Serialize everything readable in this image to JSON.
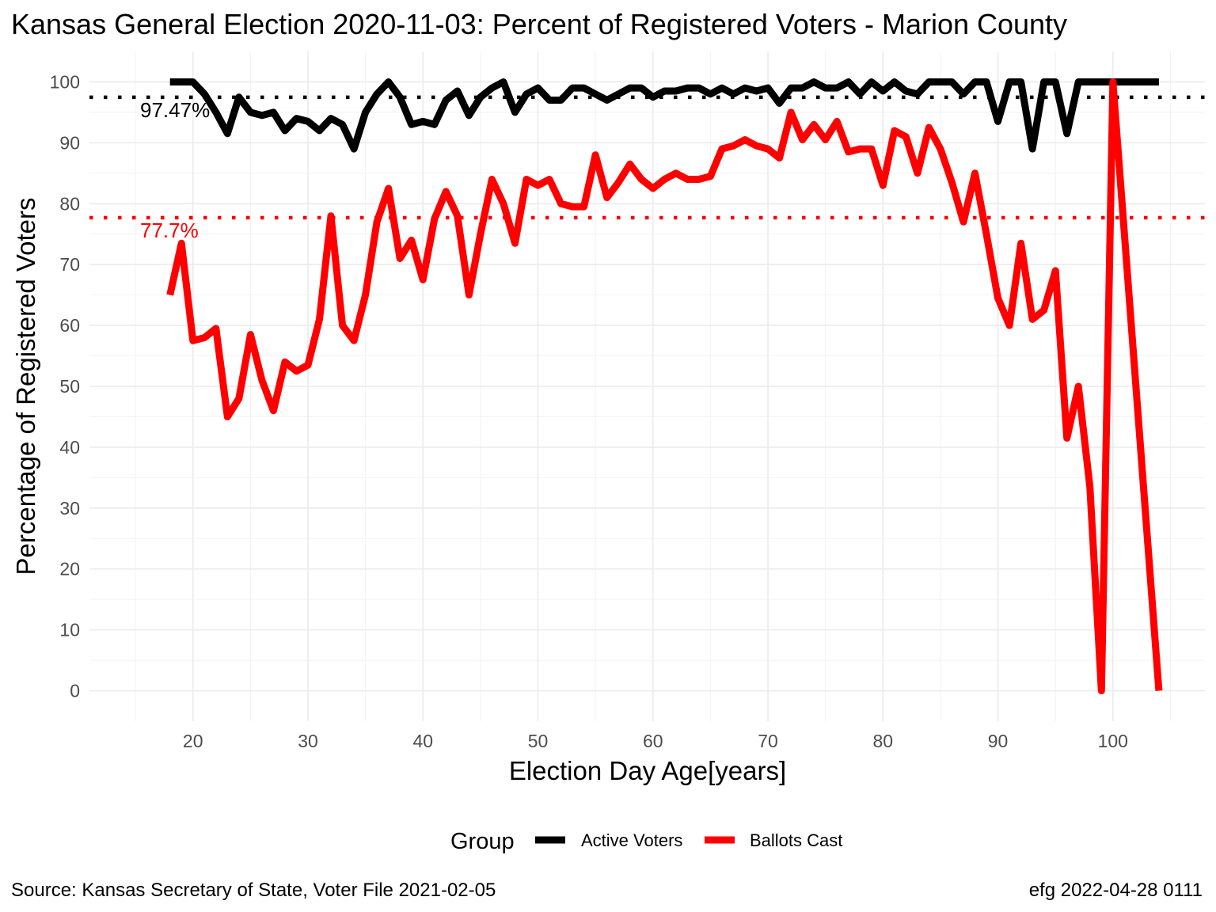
{
  "chart_data": {
    "type": "line",
    "title": "Kansas General Election 2020-11-03:  Percent of Registered Voters - Marion County",
    "xlabel": "Election Day Age[years]",
    "ylabel": "Percentage of Registered Voters",
    "xlim": [
      11,
      108
    ],
    "ylim": [
      -5,
      105
    ],
    "x_ticks": [
      20,
      30,
      40,
      50,
      60,
      70,
      80,
      90,
      100
    ],
    "y_ticks": [
      0,
      10,
      20,
      30,
      40,
      50,
      60,
      70,
      80,
      90,
      100
    ],
    "x_tick_labels": [
      "20",
      "30",
      "40",
      "50",
      "60",
      "70",
      "80",
      "90",
      "100"
    ],
    "y_tick_labels": [
      "0",
      "10",
      "20",
      "30",
      "40",
      "50",
      "60",
      "70",
      "80",
      "90",
      "100"
    ],
    "grid": true,
    "legend": {
      "title": "Group",
      "position": "bottom"
    },
    "series": [
      {
        "name": "Active Voters",
        "color": "#000000",
        "x": [
          18,
          19,
          20,
          21,
          22,
          23,
          24,
          25,
          26,
          27,
          28,
          29,
          30,
          31,
          32,
          33,
          34,
          35,
          36,
          37,
          38,
          39,
          40,
          41,
          42,
          43,
          44,
          45,
          46,
          47,
          48,
          49,
          50,
          51,
          52,
          53,
          54,
          55,
          56,
          57,
          58,
          59,
          60,
          61,
          62,
          63,
          64,
          65,
          66,
          67,
          68,
          69,
          70,
          71,
          72,
          73,
          74,
          75,
          76,
          77,
          78,
          79,
          80,
          81,
          82,
          83,
          84,
          85,
          86,
          87,
          88,
          89,
          90,
          91,
          92,
          93,
          94,
          95,
          96,
          97,
          98,
          99,
          100,
          101,
          102,
          103,
          104
        ],
        "values": [
          100,
          100,
          100,
          98,
          95,
          91.5,
          97.5,
          95,
          94.5,
          95,
          92,
          94,
          93.5,
          92,
          94,
          93,
          89,
          95,
          98,
          100,
          97.5,
          93,
          93.5,
          93,
          97,
          98.5,
          94.5,
          97.5,
          99,
          100,
          95,
          98,
          99,
          97,
          97,
          99,
          99,
          98,
          97,
          98,
          99,
          99,
          97.5,
          98.5,
          98.5,
          99,
          99,
          98,
          99,
          98,
          99,
          98.5,
          99,
          96.5,
          99,
          99,
          100,
          99,
          99,
          100,
          98,
          100,
          98.5,
          100,
          98.5,
          98,
          100,
          100,
          100,
          98,
          100,
          100,
          93.5,
          100,
          100,
          89,
          100,
          100,
          91.5,
          100,
          100,
          100,
          100,
          100,
          100,
          100,
          100
        ]
      },
      {
        "name": "Ballots Cast",
        "color": "#ff0000",
        "x": [
          18,
          19,
          20,
          21,
          22,
          23,
          24,
          25,
          26,
          27,
          28,
          29,
          30,
          31,
          32,
          33,
          34,
          35,
          36,
          37,
          38,
          39,
          40,
          41,
          42,
          43,
          44,
          45,
          46,
          47,
          48,
          49,
          50,
          51,
          52,
          53,
          54,
          55,
          56,
          57,
          58,
          59,
          60,
          61,
          62,
          63,
          64,
          65,
          66,
          67,
          68,
          69,
          70,
          71,
          72,
          73,
          74,
          75,
          76,
          77,
          78,
          79,
          80,
          81,
          82,
          83,
          84,
          85,
          86,
          87,
          88,
          89,
          90,
          91,
          92,
          93,
          94,
          95,
          96,
          97,
          98,
          99,
          100,
          104
        ],
        "values": [
          65,
          73.5,
          57.5,
          58,
          59.5,
          45,
          48,
          58.5,
          51,
          46,
          54,
          52.5,
          53.5,
          61,
          78,
          60,
          57.5,
          65,
          77,
          82.5,
          71,
          74,
          67.5,
          77.5,
          82,
          78,
          65,
          75,
          84,
          80,
          73.5,
          84,
          83,
          84,
          80,
          79.5,
          79.5,
          88,
          81,
          83.5,
          86.5,
          84,
          82.5,
          84,
          85,
          84,
          84,
          84.5,
          89,
          89.5,
          90.5,
          89.5,
          89,
          87.5,
          95,
          90.5,
          93,
          90.5,
          93.5,
          88.5,
          89,
          89,
          83,
          92,
          91,
          85,
          92.5,
          89,
          83.5,
          77,
          85,
          75,
          64.5,
          60,
          73.5,
          61,
          62.5,
          69,
          41.5,
          50,
          33.5,
          0,
          100,
          0
        ]
      }
    ],
    "reference_lines": [
      {
        "value": 97.47,
        "label": "97.47%",
        "color": "#000000"
      },
      {
        "value": 77.7,
        "label": "77.7%",
        "color": "#ff0000"
      }
    ]
  },
  "caption": {
    "left": "Source:  Kansas Secretary of State, Voter File  2021-02-05",
    "right": "efg 2022-04-28 0111"
  }
}
